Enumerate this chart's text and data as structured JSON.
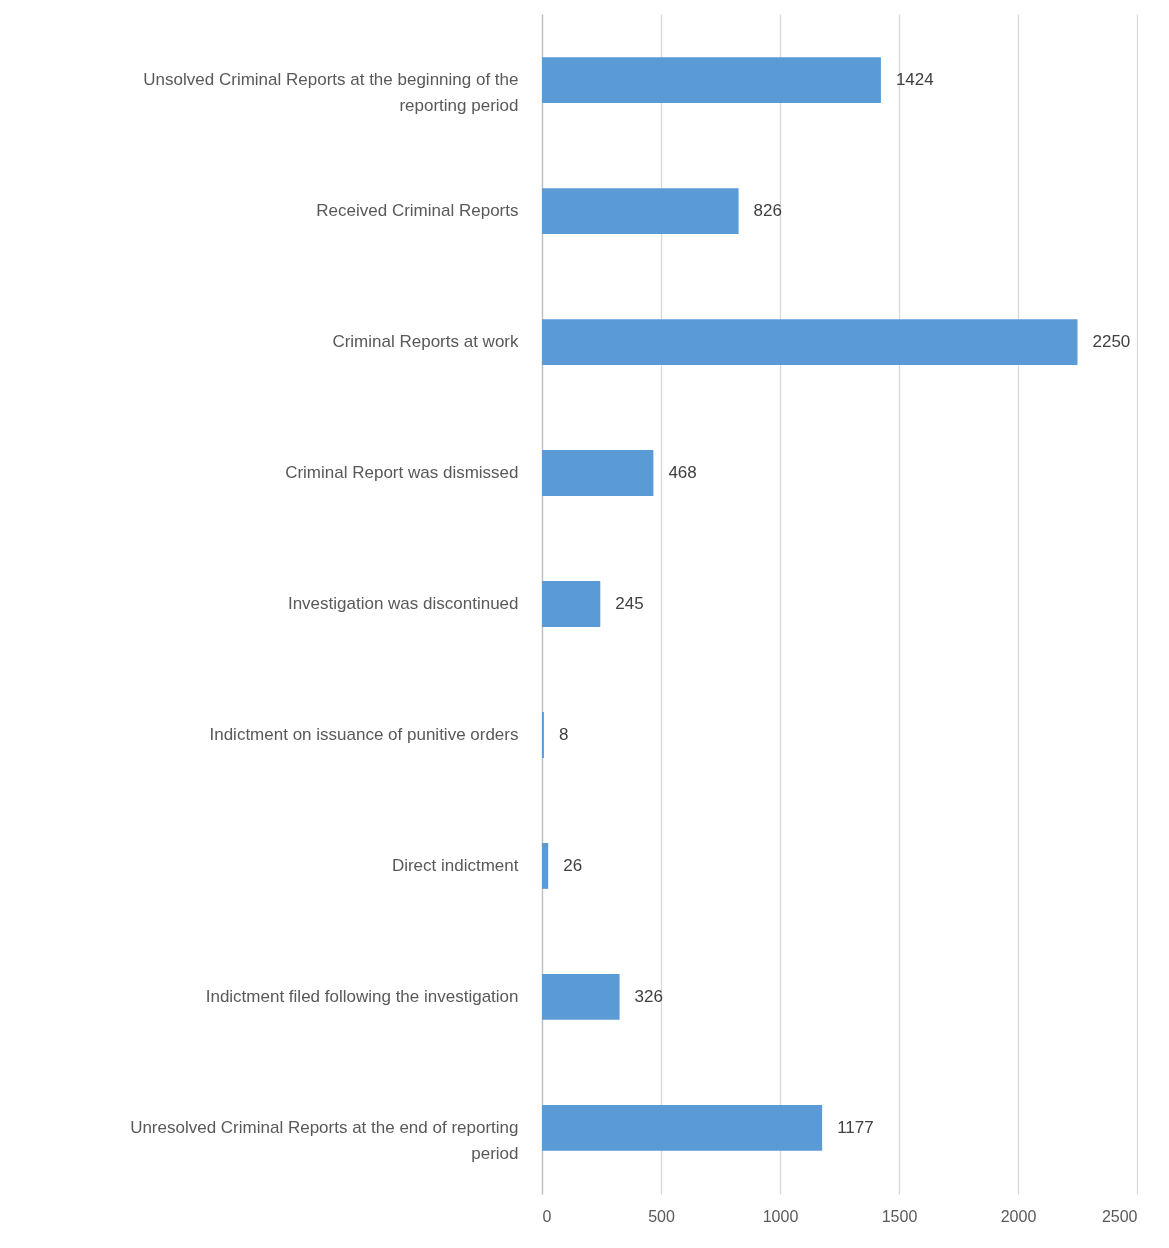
{
  "chart_data": {
    "type": "bar",
    "orientation": "horizontal",
    "categories": [
      "Unsolved Criminal Reports at the beginning of the reporting period",
      "Received Criminal Reports",
      "Criminal Reports at work",
      "Criminal Report was dismissed",
      "Investigation was discontinued",
      "Indictment on issuance of punitive orders",
      "Direct indictment",
      "Indictment filed following the investigation",
      "Unresolved Criminal Reports at the end of reporting period"
    ],
    "values": [
      1424,
      826,
      2250,
      468,
      245,
      8,
      26,
      326,
      1177
    ],
    "color": "#5b9bd5",
    "xlim": [
      0,
      2500
    ],
    "xticks": [
      0,
      500,
      1000,
      1500,
      2000,
      2500
    ],
    "grid": "x",
    "data_labels": true
  }
}
